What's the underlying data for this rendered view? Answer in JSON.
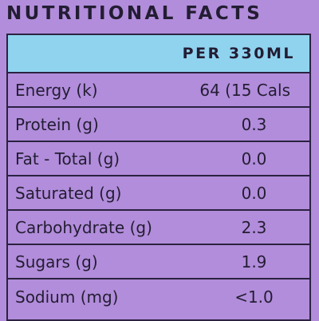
{
  "header": {
    "title": "NUTRITIONAL FACTS"
  },
  "table": {
    "header": "PER 330ML",
    "rows": [
      [
        "Energy (k)",
        "64 (15 Cals"
      ],
      [
        "Protein (g)",
        "0.3"
      ],
      [
        "Fat - Total (g)",
        "0.0"
      ],
      [
        "Saturated (g)",
        "0.0"
      ],
      [
        "Carbohydrate (g)",
        "2.3"
      ],
      [
        "Sugars (g)",
        "1.9"
      ],
      [
        "Sodium (mg)",
        "<1.0"
      ]
    ]
  }
}
